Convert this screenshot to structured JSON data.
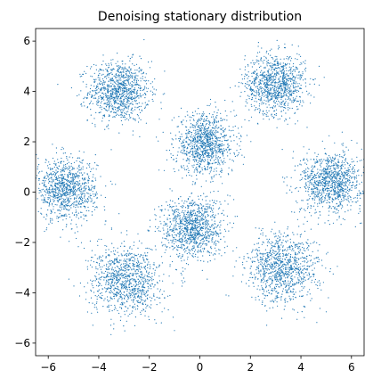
{
  "chart_data": {
    "type": "scatter",
    "title": "Denoising stationary distribution",
    "xlabel": "",
    "ylabel": "",
    "xlim": [
      -6.5,
      6.5
    ],
    "ylim": [
      -6.5,
      6.5
    ],
    "grid": false,
    "legend": "none",
    "marker_color": "#1f77b4",
    "x_ticks": [
      -6,
      -4,
      -2,
      0,
      2,
      4,
      6
    ],
    "y_ticks": [
      -6,
      -4,
      -2,
      0,
      2,
      4,
      6
    ],
    "x_tick_labels": [
      "−6",
      "−4",
      "−2",
      "0",
      "2",
      "4",
      "6"
    ],
    "y_tick_labels": [
      "−6",
      "−4",
      "−2",
      "0",
      "2",
      "4",
      "6"
    ],
    "clusters": [
      {
        "center": [
          -3.2,
          4.0
        ],
        "spread": 0.6
      },
      {
        "center": [
          3.0,
          4.3
        ],
        "spread": 0.6
      },
      {
        "center": [
          0.2,
          1.9
        ],
        "spread": 0.6
      },
      {
        "center": [
          -5.3,
          0.1
        ],
        "spread": 0.6
      },
      {
        "center": [
          5.2,
          0.4
        ],
        "spread": 0.6
      },
      {
        "center": [
          -0.3,
          -1.4
        ],
        "spread": 0.6
      },
      {
        "center": [
          -2.9,
          -3.5
        ],
        "spread": 0.7
      },
      {
        "center": [
          3.3,
          -3.0
        ],
        "spread": 0.7
      }
    ],
    "points_per_cluster": 1000
  }
}
